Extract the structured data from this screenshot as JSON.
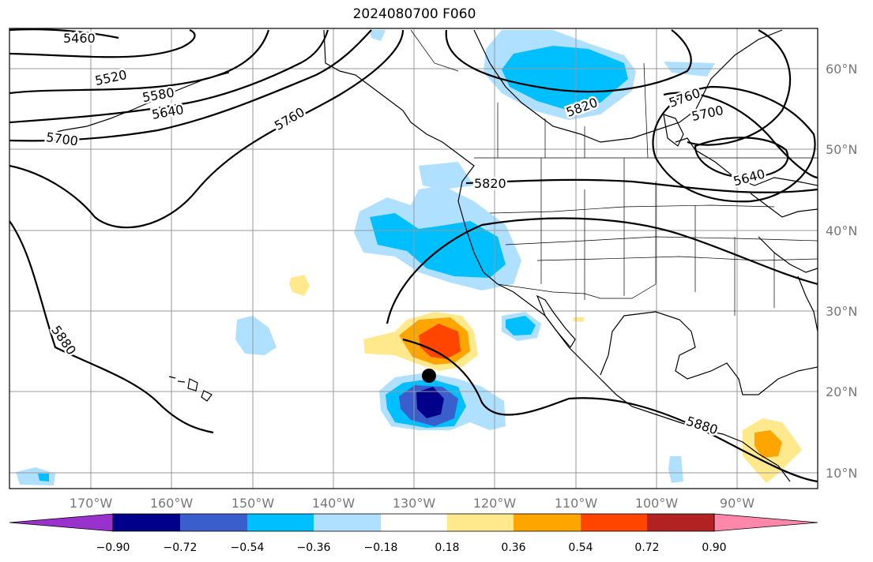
{
  "title": "2024080700 F060",
  "lat_labels": [
    "60°N",
    "50°N",
    "40°N",
    "30°N",
    "20°N",
    "10°N"
  ],
  "lon_labels": [
    "170°W",
    "160°W",
    "150°W",
    "140°W",
    "130°W",
    "120°W",
    "110°W",
    "100°W",
    "90°W"
  ],
  "contour_labels": [
    "5460",
    "5520",
    "5580",
    "5640",
    "5700",
    "5760",
    "5820",
    "5760",
    "5700",
    "5640",
    "5820",
    "5880",
    "5880"
  ],
  "colorbar": {
    "ticks": [
      "−0.90",
      "−0.72",
      "−0.54",
      "−0.36",
      "−0.18",
      "0.18",
      "0.36",
      "0.54",
      "0.72",
      "0.90"
    ],
    "colors": [
      "#9932cc",
      "#00008b",
      "#3a5fcd",
      "#00bfff",
      "#b0e0ff",
      "#ffffff",
      "#ffe98c",
      "#ffa500",
      "#ff4500",
      "#b22222",
      "#ff88aa"
    ]
  },
  "colors": {
    "grid": "#999999",
    "axis_labels": "#777777"
  }
}
